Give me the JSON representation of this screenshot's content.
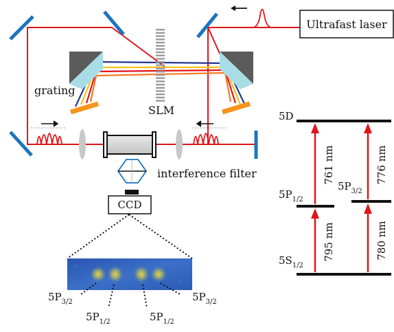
{
  "colors": {
    "beam": "#e0151b",
    "mirror": "#1b75bc",
    "grating": "#f7941d",
    "prism": "#555555",
    "prism_face": "#a8dde6",
    "lens": "#c8c8c8",
    "slm": "#9a9a9a",
    "spectrum_blue": "#20378f",
    "spectrum_yellow": "#f4c21a",
    "spectrum_orange": "#f37a1f",
    "level": "#111111",
    "transition": "#e0151b",
    "ccd_bg": "#2f5fb8",
    "ccd_spot": "#e6c83c"
  },
  "setup": {
    "laser_label": "Ultrafast laser",
    "slm_label": "SLM",
    "grating_label": "grating",
    "filter_label": "interference filter",
    "ccd_label": "CCD"
  },
  "ccd_image": {
    "spot_labels": [
      {
        "main": "5P",
        "sub": "3/2"
      },
      {
        "main": "5P",
        "sub": "1/2"
      },
      {
        "main": "5P",
        "sub": "1/2"
      },
      {
        "main": "5P",
        "sub": "3/2"
      }
    ]
  },
  "levels": {
    "top": {
      "main": "5D",
      "sub": ""
    },
    "mid_left": {
      "main": "5P",
      "sub": "1/2"
    },
    "mid_right": {
      "main": "5P",
      "sub": "3/2"
    },
    "ground": {
      "main": "5S",
      "sub": "1/2"
    }
  },
  "transitions": {
    "upper_left": "761 nm",
    "upper_right": "776 nm",
    "lower_left": "795 nm",
    "lower_right": "780 nm"
  }
}
